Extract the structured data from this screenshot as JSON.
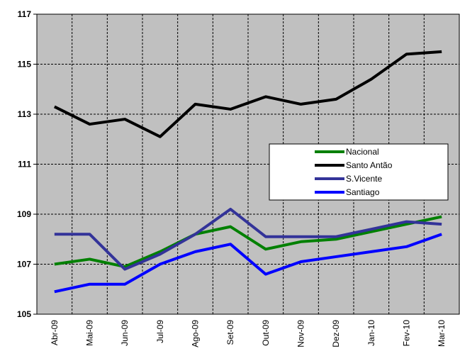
{
  "chart_data": {
    "type": "line",
    "categories": [
      "Abr-09",
      "Mai-09",
      "Jun-09",
      "Jul-09",
      "Ago-09",
      "Set-09",
      "Out-09",
      "Nov-09",
      "Dez-09",
      "Jan-10",
      "Fev-10",
      "Mar-10"
    ],
    "series": [
      {
        "name": "Nacional",
        "color": "#008000",
        "values": [
          107.0,
          107.2,
          106.9,
          107.5,
          108.2,
          108.5,
          107.6,
          107.9,
          108.0,
          108.3,
          108.6,
          108.9
        ]
      },
      {
        "name": "Santo Antão",
        "color": "#000000",
        "values": [
          113.3,
          112.6,
          112.8,
          112.1,
          113.4,
          113.2,
          113.7,
          113.4,
          113.6,
          114.4,
          115.4,
          115.5
        ]
      },
      {
        "name": "S.Vicente",
        "color": "#333399",
        "values": [
          108.2,
          108.2,
          106.8,
          107.4,
          108.2,
          109.2,
          108.1,
          108.1,
          108.1,
          108.4,
          108.7,
          108.6
        ]
      },
      {
        "name": "Santiago",
        "color": "#0000ff",
        "values": [
          105.9,
          106.2,
          106.2,
          107.0,
          107.5,
          107.8,
          106.6,
          107.1,
          107.3,
          107.5,
          107.7,
          108.2
        ]
      }
    ],
    "ylim": [
      105,
      117
    ],
    "yticks": [
      105,
      107,
      109,
      111,
      113,
      115,
      117
    ],
    "grid": true,
    "legend_position": "right"
  }
}
